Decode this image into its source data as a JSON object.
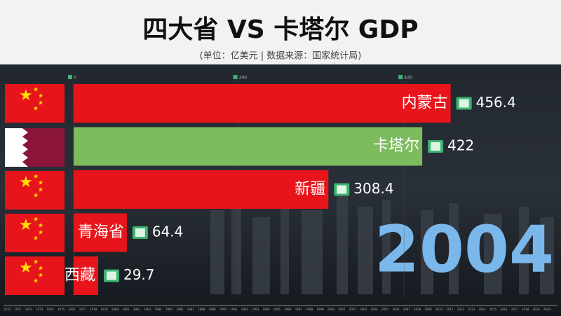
{
  "chart_data": {
    "type": "bar",
    "orientation": "horizontal",
    "title": "四大省 VS 卡塔尔 GDP",
    "subtitle": "(单位：亿美元 | 数据来源：国家统计局)",
    "year": "2004",
    "categories": [
      "内蒙古",
      "卡塔尔",
      "新疆",
      "青海省",
      "西藏"
    ],
    "values": [
      456.4,
      422,
      308.4,
      64.4,
      29.7
    ],
    "colors": [
      "#e8141b",
      "#7dbb5f",
      "#e8141b",
      "#e8141b",
      "#e8141b"
    ],
    "xlim": [
      0,
      590
    ],
    "xticks": [
      0,
      200,
      400
    ],
    "grid": true,
    "timeline": [
      "1970",
      "1971",
      "1972",
      "1973",
      "1974",
      "1975",
      "1976",
      "1977",
      "1978",
      "1979",
      "1980",
      "1981",
      "1982",
      "1983",
      "1984",
      "1985",
      "1986",
      "1987",
      "1988",
      "1989",
      "1990",
      "1991",
      "1992",
      "1993",
      "1994",
      "1995",
      "1996",
      "1997",
      "1998",
      "1999",
      "2000",
      "2001",
      "2002",
      "2003",
      "2004",
      "2005",
      "2006",
      "2007",
      "2008",
      "2009",
      "2010",
      "2011",
      "2012",
      "2013",
      "2014",
      "2015",
      "2016",
      "2017",
      "2018",
      "2019",
      "2020"
    ]
  }
}
